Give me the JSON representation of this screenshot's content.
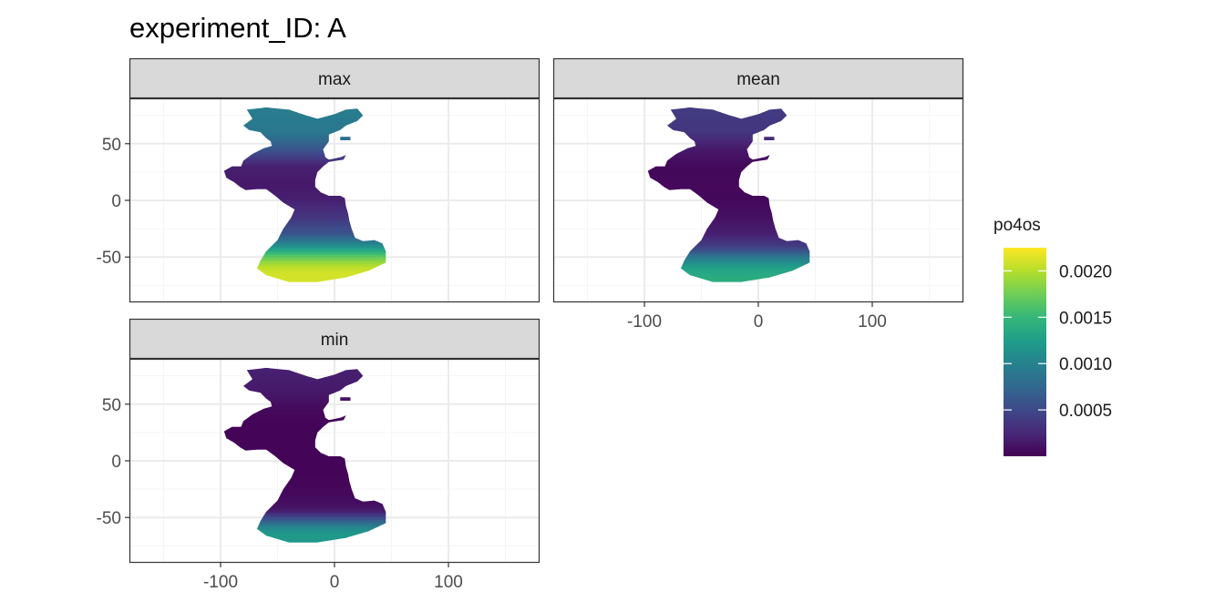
{
  "chart_data": {
    "type": "heatmap",
    "title": "experiment_ID: A",
    "facets": [
      "max",
      "mean",
      "min"
    ],
    "x_ticks": [
      -100,
      0,
      100
    ],
    "y_ticks": [
      50,
      0,
      -50
    ],
    "x_range": [
      -180,
      180
    ],
    "y_range": [
      -90,
      90
    ],
    "grid": true,
    "legend": {
      "title": "po4os",
      "position": "right",
      "ticks": [
        "0.0020",
        "0.0015",
        "0.0010",
        "0.0005"
      ],
      "tick_values": [
        0.002,
        0.0015,
        0.001,
        0.0005
      ],
      "min": 0.0,
      "max": 0.00225,
      "colors": [
        "#440154",
        "#482878",
        "#3e4989",
        "#31688e",
        "#26828e",
        "#1f9e89",
        "#35b779",
        "#6ece58",
        "#b5de2b",
        "#fde725"
      ]
    },
    "latitude_profile": {
      "lat": [
        80,
        60,
        45,
        30,
        15,
        0,
        -15,
        -30,
        -40,
        -45,
        -50,
        -55,
        -60,
        -65,
        -70,
        -75
      ],
      "max": [
        0.00095,
        0.0009,
        0.0006,
        0.0002,
        0.00015,
        0.0002,
        0.00035,
        0.0006,
        0.0011,
        0.0014,
        0.0017,
        0.0019,
        0.00205,
        0.0021,
        0.0021,
        0.0021
      ],
      "mean": [
        0.0004,
        0.00035,
        0.00015,
        5e-05,
        5e-05,
        5e-05,
        0.0001,
        0.0002,
        0.0004,
        0.0006,
        0.0009,
        0.0011,
        0.0013,
        0.00135,
        0.0014,
        0.0014
      ],
      "min": [
        0.0002,
        0.00015,
        5e-05,
        2e-05,
        2e-05,
        2e-05,
        3e-05,
        5e-05,
        0.0001,
        0.0002,
        0.0005,
        0.0008,
        0.0011,
        0.0012,
        0.0012,
        0.0012
      ]
    }
  },
  "colors": {
    "strip_bg": "#d9d9d9",
    "panel_border": "#333333",
    "grid_major": "#ebebeb",
    "grid_minor": "#f5f5f5"
  }
}
